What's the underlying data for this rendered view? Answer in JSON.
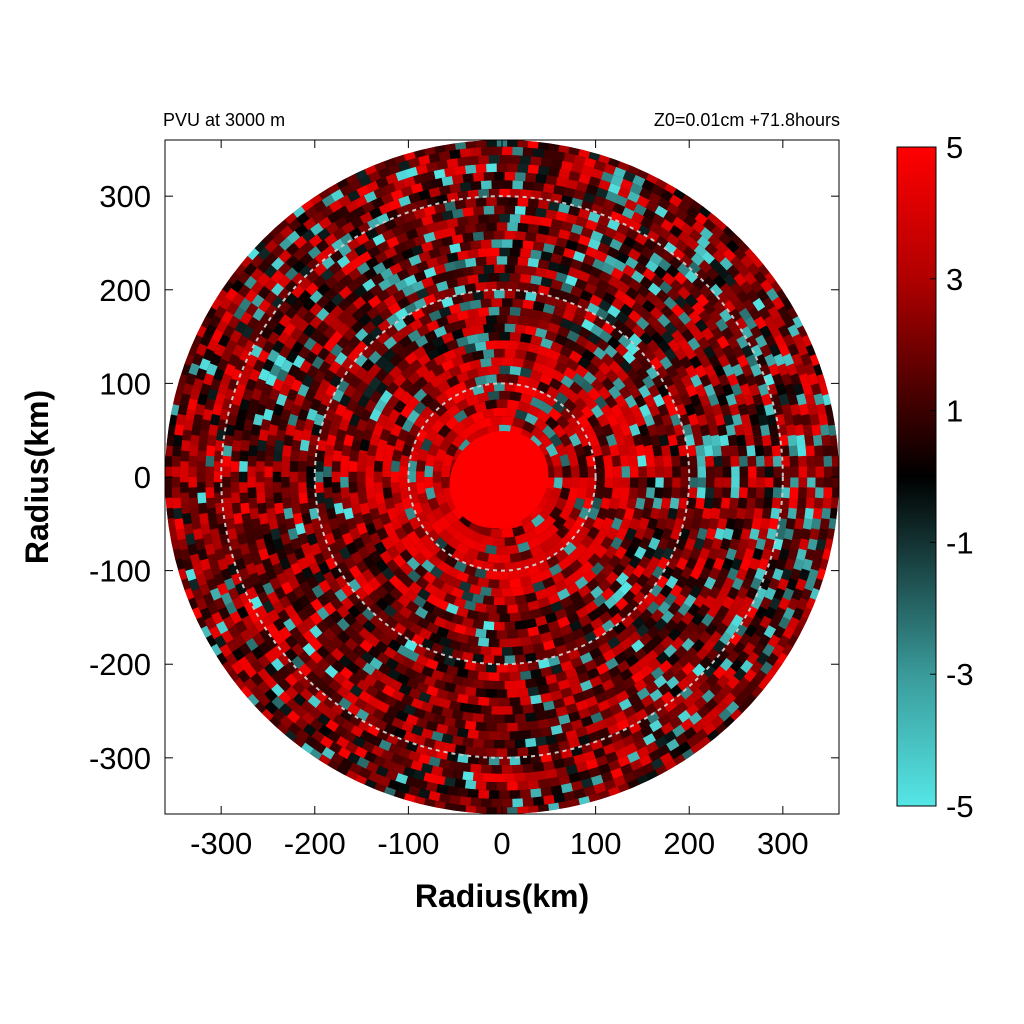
{
  "chart_data": {
    "type": "heatmap",
    "subtype": "polar-field",
    "title_left": "PVU at  3000 m",
    "title_right": "Z0=0.01cm  +71.8hours",
    "xlabel": "Radius(km)",
    "ylabel": "Radius(km)",
    "xlim": [
      -360,
      360
    ],
    "ylim": [
      -360,
      360
    ],
    "x_ticks": [
      -300,
      -200,
      -100,
      0,
      100,
      200,
      300
    ],
    "y_ticks": [
      300,
      200,
      100,
      0,
      -100,
      -200,
      -300
    ],
    "x_tick_labels": [
      "-300",
      "-200",
      "-100",
      "0",
      "100",
      "200",
      "300"
    ],
    "y_tick_labels": [
      "300",
      "200",
      "100",
      "0",
      "-100",
      "-200",
      "-300"
    ],
    "domain_radius_km": 360,
    "range_rings_km": [
      100,
      200,
      300
    ],
    "eye_core_value": 5,
    "eye_core_radius_km": 55,
    "colorbar": {
      "min": -5,
      "max": 5,
      "ticks": [
        5,
        3,
        1,
        -1,
        -3,
        -5
      ],
      "tick_labels": [
        "5",
        "3",
        "1",
        "-1",
        "-3",
        "-5"
      ],
      "colors": [
        {
          "value": -5,
          "color": "#55e6e6"
        },
        {
          "value": -3,
          "color": "#3a9a9a"
        },
        {
          "value": -1,
          "color": "#143232"
        },
        {
          "value": 0,
          "color": "#000000"
        },
        {
          "value": 1,
          "color": "#3a0000"
        },
        {
          "value": 3,
          "color": "#b00000"
        },
        {
          "value": 5,
          "color": "#ff0000"
        }
      ]
    },
    "grid": false
  }
}
